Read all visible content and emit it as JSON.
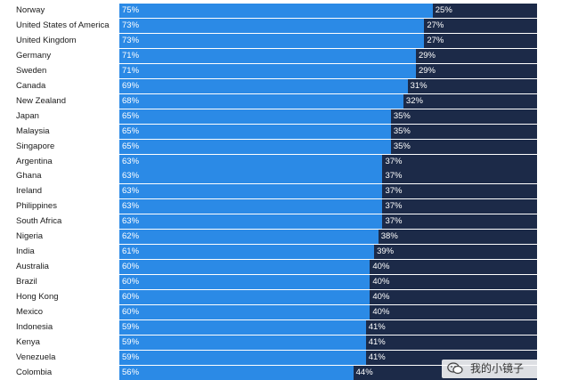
{
  "chart_data": {
    "type": "bar",
    "orientation": "horizontal-stacked",
    "categories": [
      "Norway",
      "United States of America",
      "United Kingdom",
      "Germany",
      "Sweden",
      "Canada",
      "New Zealand",
      "Japan",
      "Malaysia",
      "Singapore",
      "Argentina",
      "Ghana",
      "Ireland",
      "Philippines",
      "South Africa",
      "Nigeria",
      "India",
      "Australia",
      "Brazil",
      "Hong Kong",
      "Mexico",
      "Indonesia",
      "Kenya",
      "Venezuela",
      "Colombia"
    ],
    "series": [
      {
        "values": [
          75,
          73,
          73,
          71,
          71,
          69,
          68,
          65,
          65,
          65,
          63,
          63,
          63,
          63,
          63,
          62,
          61,
          60,
          60,
          60,
          60,
          59,
          59,
          59,
          56
        ]
      },
      {
        "values": [
          25,
          27,
          27,
          29,
          29,
          31,
          32,
          35,
          35,
          35,
          37,
          37,
          37,
          37,
          37,
          38,
          39,
          40,
          40,
          40,
          40,
          41,
          41,
          41,
          44
        ]
      }
    ],
    "colors": [
      "#2b8ae6",
      "#1c2a48"
    ],
    "value_suffix": "%",
    "xlim": [
      0,
      100
    ]
  },
  "watermark": {
    "text": "我的小镜子"
  }
}
